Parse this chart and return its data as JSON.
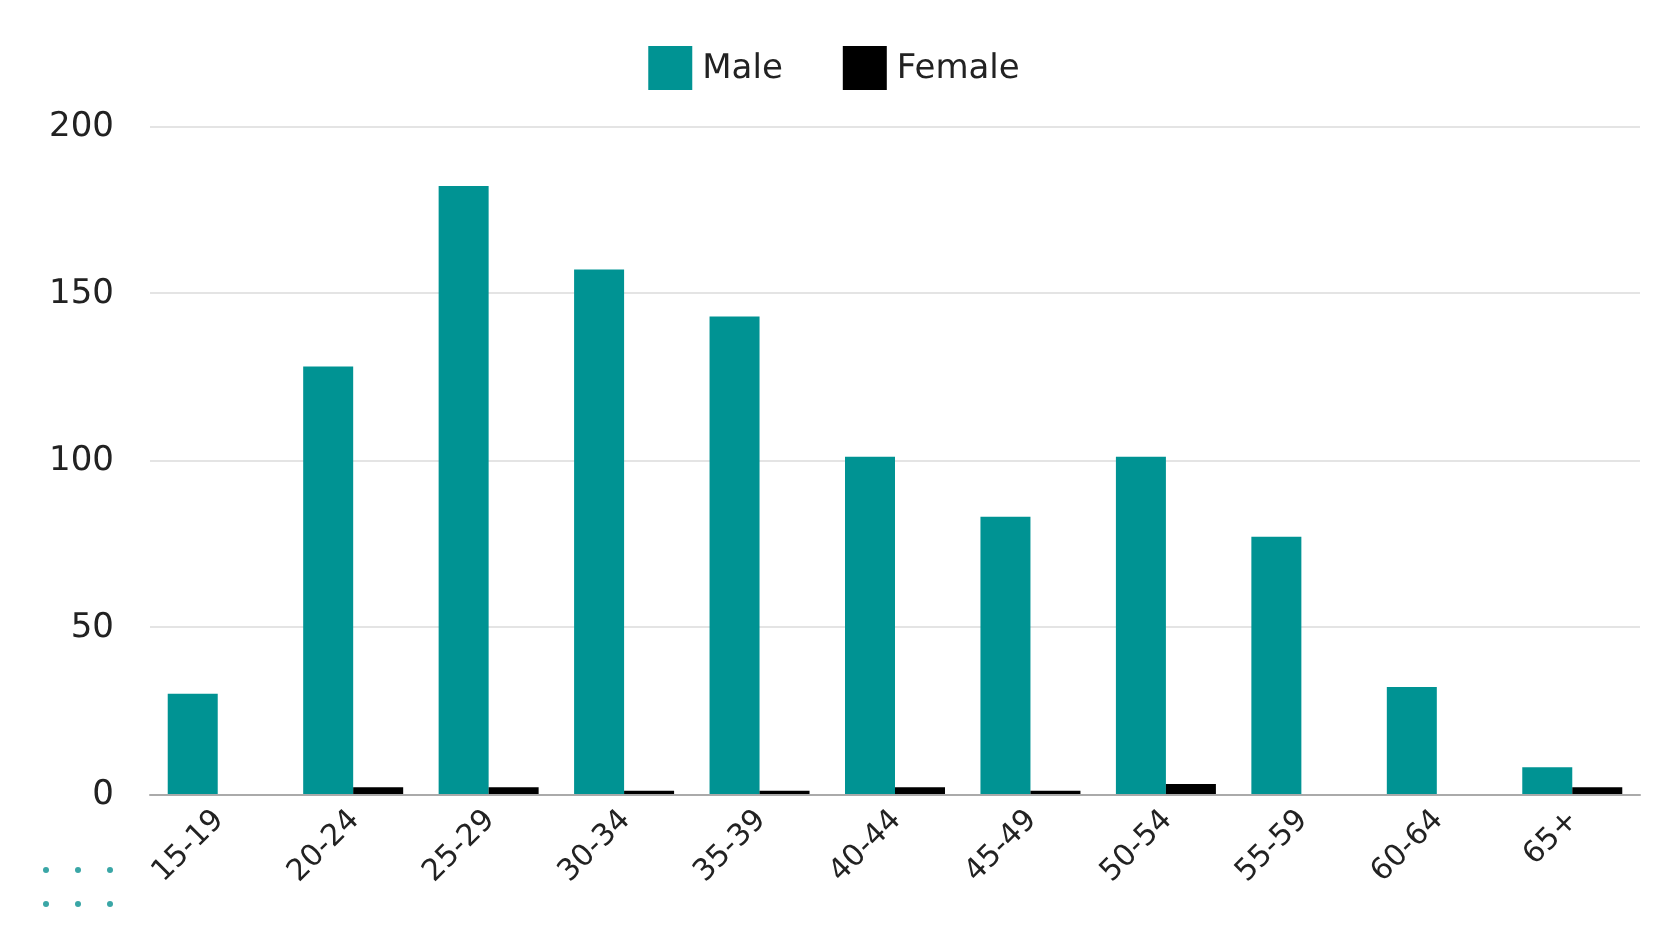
{
  "chart_data": {
    "type": "bar",
    "categories": [
      "15-19",
      "20-24",
      "25-29",
      "30-34",
      "35-39",
      "40-44",
      "45-49",
      "50-54",
      "55-59",
      "60-64",
      "65+"
    ],
    "series": [
      {
        "name": "Male",
        "color": "#009393",
        "values": [
          30,
          128,
          182,
          157,
          143,
          101,
          83,
          101,
          77,
          32,
          8
        ]
      },
      {
        "name": "Female",
        "color": "#000000",
        "values": [
          0,
          2,
          2,
          1,
          1,
          2,
          1,
          3,
          0,
          0,
          2
        ]
      }
    ],
    "ylim": [
      0,
      200
    ],
    "yticks": [
      0,
      50,
      100,
      150,
      200
    ],
    "grid": "y",
    "legend": "top"
  }
}
